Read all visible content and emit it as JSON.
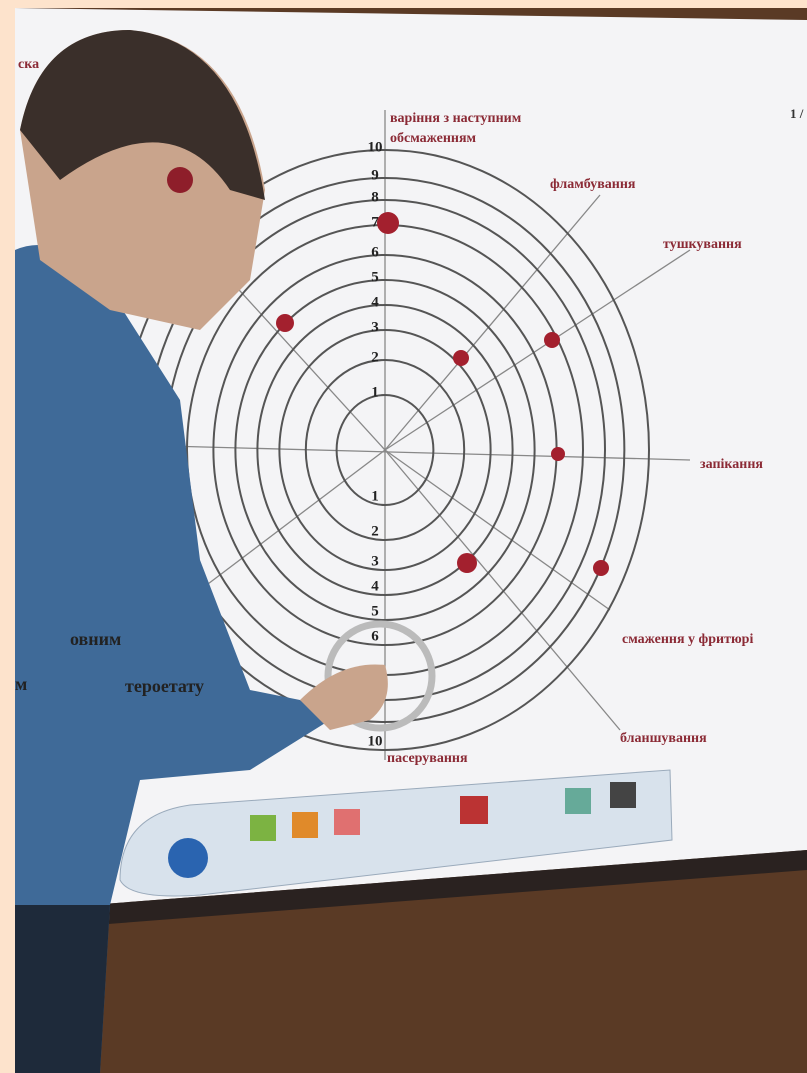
{
  "whiteboard": {
    "page_indicator": "1 /",
    "corner_fragment": "ска",
    "axis_labels": [
      "варіння з наступним",
      "обсмаженням",
      "фламбування",
      "тушкування",
      "запікання",
      "смаження у фритюрі",
      "бланшування",
      "пасерування"
    ],
    "scale_up": [
      "1",
      "2",
      "3",
      "4",
      "5",
      "6",
      "7",
      "8",
      "9",
      "10"
    ],
    "scale_down": [
      "1",
      "2",
      "3",
      "4",
      "5",
      "6",
      "10"
    ],
    "side_fragments": [
      "овним",
      "тероетату",
      "м"
    ]
  }
}
